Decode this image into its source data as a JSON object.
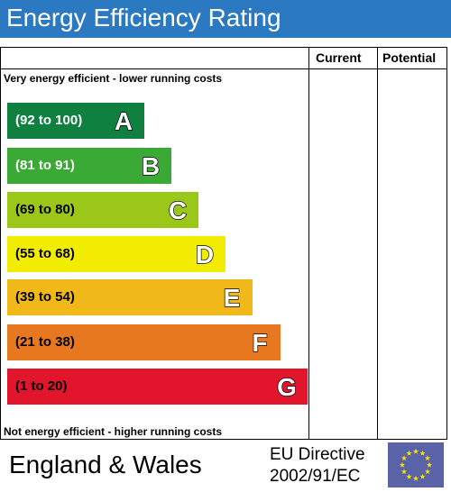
{
  "header": {
    "title": "Energy Efficiency Rating"
  },
  "columns": {
    "current": "Current",
    "potential": "Potential"
  },
  "notes": {
    "top": "Very energy efficient - lower running costs",
    "bottom": "Not energy efficient - higher running costs"
  },
  "bands": [
    {
      "range": "(92 to 100)",
      "letter": "A",
      "color": "#0f8040",
      "text_color": "#ffffff"
    },
    {
      "range": "(81 to 91)",
      "letter": "B",
      "color": "#3aa935",
      "text_color": "#ffffff"
    },
    {
      "range": "(69 to 80)",
      "letter": "C",
      "color": "#9bc818",
      "text_color": "#000000"
    },
    {
      "range": "(55 to 68)",
      "letter": "D",
      "color": "#f2ec00",
      "text_color": "#000000"
    },
    {
      "range": "(39 to 54)",
      "letter": "E",
      "color": "#f0b919",
      "text_color": "#000000"
    },
    {
      "range": "(21 to 38)",
      "letter": "F",
      "color": "#e87820",
      "text_color": "#000000"
    },
    {
      "range": "(1 to 20)",
      "letter": "G",
      "color": "#e1152c",
      "text_color": "#000000"
    }
  ],
  "footer": {
    "country": "England & Wales",
    "directive_line1": "EU Directive",
    "directive_line2": "2002/91/EC",
    "flag_icon": "eu-flag-icon"
  }
}
